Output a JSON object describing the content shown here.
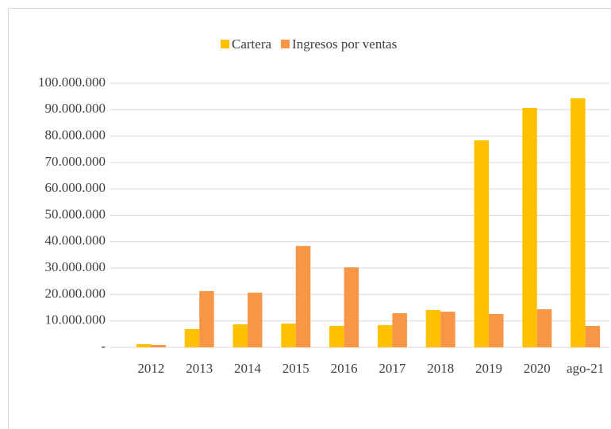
{
  "chart_data": {
    "type": "bar",
    "categories": [
      "2012",
      "2013",
      "2014",
      "2015",
      "2016",
      "2017",
      "2018",
      "2019",
      "2020",
      "ago-21"
    ],
    "series": [
      {
        "name": "Cartera",
        "color": "#ffc000",
        "values": [
          1200000,
          6900000,
          8700000,
          9000000,
          8100000,
          8400000,
          14100000,
          78400000,
          90700000,
          94300000
        ]
      },
      {
        "name": "Ingresos por ventas",
        "color": "#f79646",
        "values": [
          900000,
          21300000,
          20700000,
          38400000,
          30300000,
          12900000,
          13500000,
          12600000,
          14400000,
          8100000
        ]
      }
    ],
    "ylim": [
      0,
      100000000
    ],
    "yticks": [
      {
        "value": 0,
        "label": "-"
      },
      {
        "value": 10000000,
        "label": "10.000.000"
      },
      {
        "value": 20000000,
        "label": "20.000.000"
      },
      {
        "value": 30000000,
        "label": "30.000.000"
      },
      {
        "value": 40000000,
        "label": "40.000.000"
      },
      {
        "value": 50000000,
        "label": "50.000.000"
      },
      {
        "value": 60000000,
        "label": "60.000.000"
      },
      {
        "value": 70000000,
        "label": "70.000.000"
      },
      {
        "value": 80000000,
        "label": "80.000.000"
      },
      {
        "value": 90000000,
        "label": "90.000.000"
      },
      {
        "value": 100000000,
        "label": "100.000.000"
      }
    ],
    "grid": true,
    "legend": "top"
  }
}
